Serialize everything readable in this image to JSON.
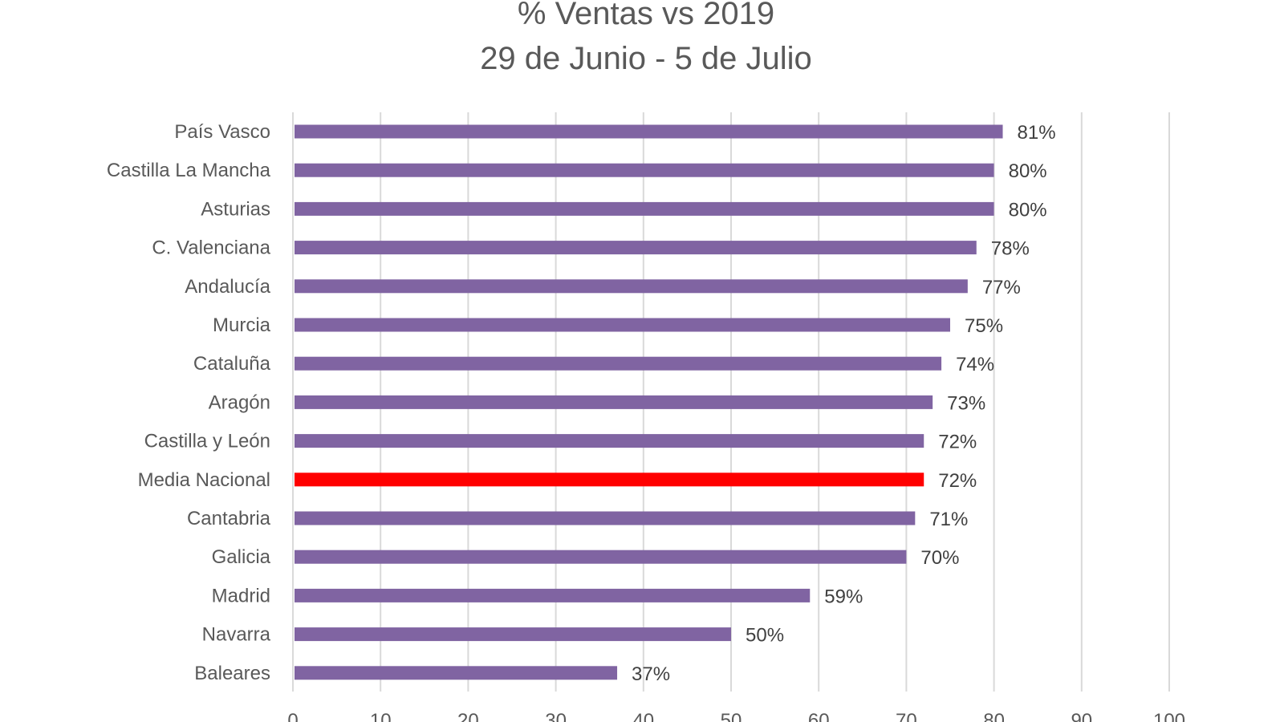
{
  "chart_data": {
    "type": "bar",
    "orientation": "horizontal",
    "title": "% Ventas vs 2019",
    "subtitle": "29 de Junio - 5 de Julio",
    "categories": [
      "País Vasco",
      "Castilla La Mancha",
      "Asturias",
      "C. Valenciana",
      "Andalucía",
      "Murcia",
      "Cataluña",
      "Aragón",
      "Castilla y León",
      "Media Nacional",
      "Cantabria",
      "Galicia",
      "Madrid",
      "Navarra",
      "Baleares"
    ],
    "values": [
      81,
      80,
      80,
      78,
      77,
      75,
      74,
      73,
      72,
      72,
      71,
      70,
      59,
      50,
      37
    ],
    "labels": [
      "81%",
      "80%",
      "80%",
      "78%",
      "77%",
      "75%",
      "74%",
      "73%",
      "72%",
      "72%",
      "71%",
      "70%",
      "59%",
      "50%",
      "37%"
    ],
    "highlight": "Media Nacional",
    "xlim": [
      0,
      100
    ],
    "xticks": [
      0,
      10,
      20,
      30,
      40,
      50,
      60,
      70,
      80,
      90,
      100
    ],
    "grid": true,
    "xlabel": "",
    "ylabel": "",
    "colors": {
      "bar": "#8064A2",
      "highlight": "#FF0000"
    }
  }
}
